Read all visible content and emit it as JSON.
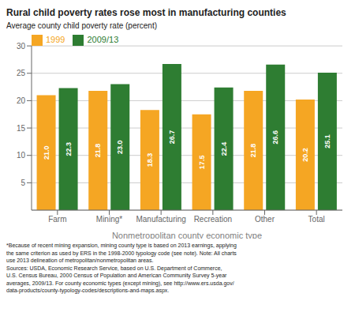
{
  "chart_data": {
    "type": "bar",
    "title": "Rural child poverty rates rose most in manufacturing counties",
    "y_label": "Average county child poverty rate (percent)",
    "x_label": "Nonmetropolitan county economic type",
    "categories": [
      "Farm",
      "Mining*",
      "Manufacturing",
      "Recreation",
      "Other",
      "Total"
    ],
    "series": [
      {
        "name": "1999",
        "color": "#F5A623",
        "values": [
          21.0,
          21.8,
          18.3,
          17.5,
          21.8,
          20.2
        ],
        "value_labels": [
          "21.0",
          "21.8",
          "18.3",
          "17.5",
          "21.8",
          "20.2"
        ]
      },
      {
        "name": "2009/13",
        "color": "#2E7D32",
        "values": [
          22.3,
          23.0,
          26.7,
          22.4,
          26.6,
          25.1
        ],
        "value_labels": [
          "22.3",
          "23.0",
          "26.7",
          "22.4",
          "26.6",
          "25.1"
        ]
      }
    ],
    "ylim": [
      0,
      30
    ],
    "yticks": [
      5,
      10,
      15,
      20,
      25,
      30
    ],
    "grid": true,
    "legend": "upper left",
    "data_labels": true,
    "annotations": [
      "*Because of recent mining expansion, mining county type is based on 2013 earnings, applying\nthe same criterion as used by ERS in the 1998-2000 typology code (see note). Note: All charts\nuse 2013 delineation of metropolitan/nonmetropolitan areas.\nSources: USDA, Economic Research Service, based on U.S. Department of Commerce,\nU.S. Census Bureau, 2000 Census of Population and American Community Survey 5-year\naverages, 2009/13. For county economic types (except mining), see http://www.ers.usda.gov/\ndata-products/county-typology-codes/descriptions-and-maps.aspx."
    ]
  }
}
